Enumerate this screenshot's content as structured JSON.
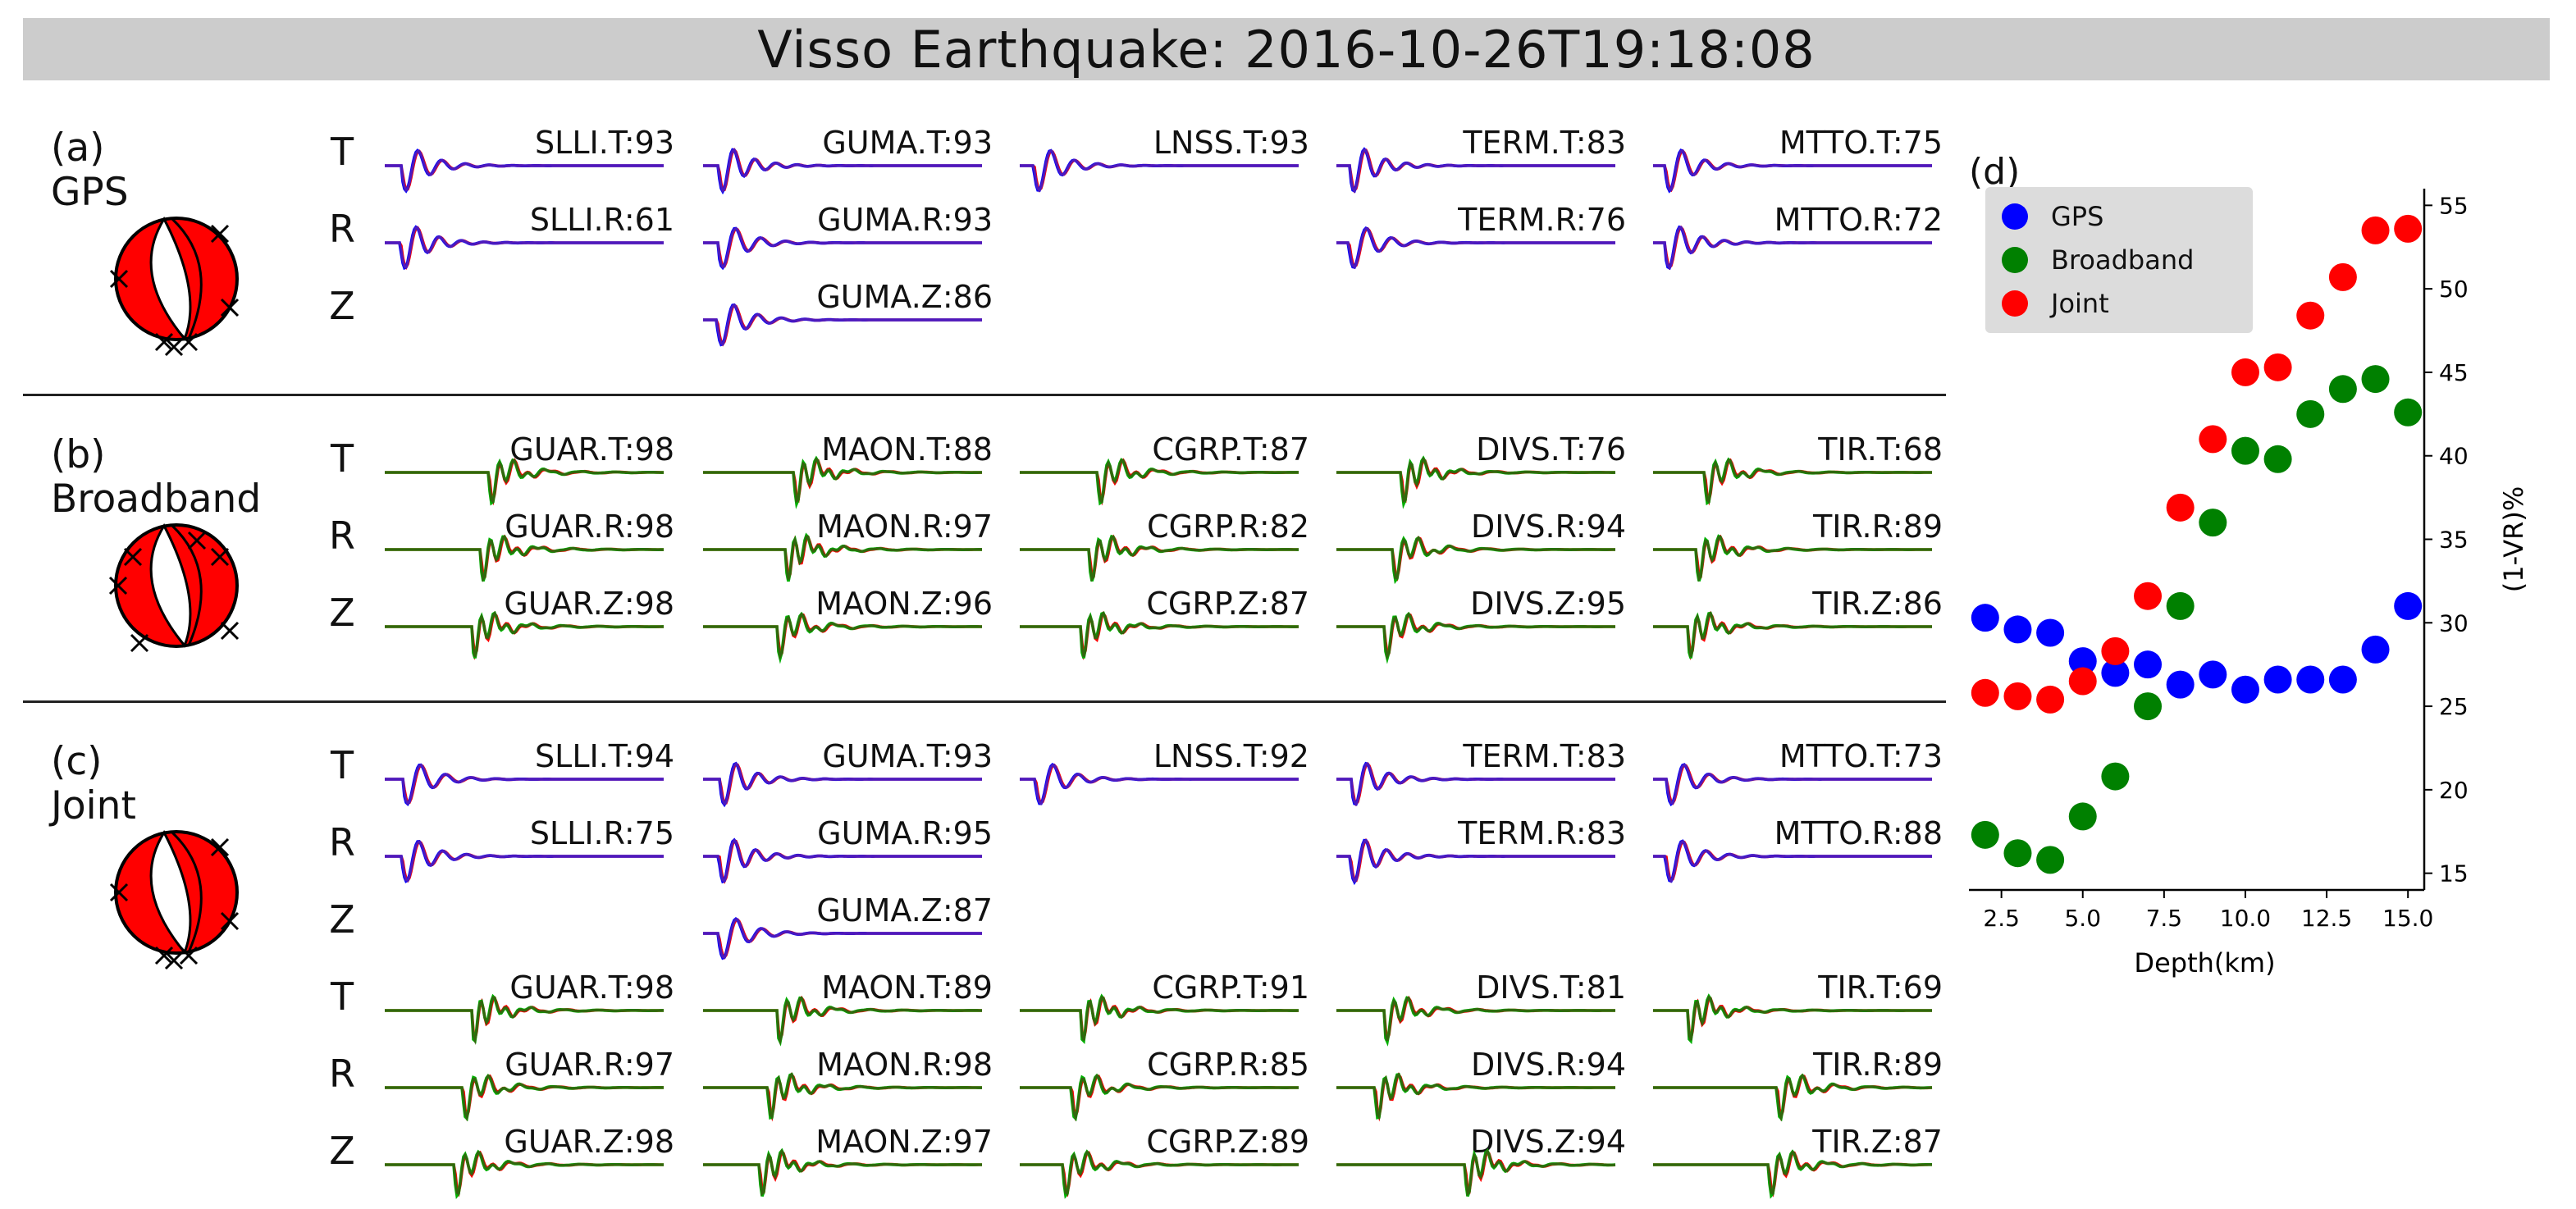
{
  "title": "Visso Earthquake: 2016-10-26T19:18:08",
  "colors": {
    "gps_obs": "#ff0000",
    "gps_syn": "#0000ff",
    "gps_overlap": "#5a1fb0",
    "bb_obs": "#ff0000",
    "bb_syn": "#00b000",
    "bb_overlap": "#3a5a10",
    "beachball_fill": "#ff0000"
  },
  "panels": [
    {
      "tag": "(a)",
      "name": "GPS",
      "type": "gps",
      "rows": [
        {
          "comp": "T",
          "stations": [
            "SLLI.T:93",
            "GUMA.T:93",
            "LNSS.T:93",
            "TERM.T:83",
            "MTTO.T:75"
          ]
        },
        {
          "comp": "R",
          "stations": [
            "SLLI.R:61",
            "GUMA.R:93",
            "",
            "TERM.R:76",
            "MTTO.R:72"
          ]
        },
        {
          "comp": "Z",
          "stations": [
            "",
            "GUMA.Z:86",
            "",
            "",
            ""
          ]
        }
      ]
    },
    {
      "tag": "(b)",
      "name": "Broadband",
      "type": "bb",
      "rows": [
        {
          "comp": "T",
          "stations": [
            "GUAR.T:98",
            "MAON.T:88",
            "CGRP.T:87",
            "DIVS.T:76",
            "TIR.T:68"
          ]
        },
        {
          "comp": "R",
          "stations": [
            "GUAR.R:98",
            "MAON.R:97",
            "CGRP.R:82",
            "DIVS.R:94",
            "TIR.R:89"
          ]
        },
        {
          "comp": "Z",
          "stations": [
            "GUAR.Z:98",
            "MAON.Z:96",
            "CGRP.Z:87",
            "DIVS.Z:95",
            "TIR.Z:86"
          ]
        }
      ]
    },
    {
      "tag": "(c)",
      "name": "Joint",
      "type": "joint",
      "rows": [
        {
          "comp": "T",
          "kind": "gps",
          "stations": [
            "SLLI.T:94",
            "GUMA.T:93",
            "LNSS.T:92",
            "TERM.T:83",
            "MTTO.T:73"
          ]
        },
        {
          "comp": "R",
          "kind": "gps",
          "stations": [
            "SLLI.R:75",
            "GUMA.R:95",
            "",
            "TERM.R:83",
            "MTTO.R:88"
          ]
        },
        {
          "comp": "Z",
          "kind": "gps",
          "stations": [
            "",
            "GUMA.Z:87",
            "",
            "",
            ""
          ]
        },
        {
          "comp": "T",
          "kind": "bb",
          "stations": [
            "GUAR.T:98",
            "MAON.T:89",
            "CGRP.T:91",
            "DIVS.T:81",
            "TIR.T:69"
          ]
        },
        {
          "comp": "R",
          "kind": "bb",
          "stations": [
            "GUAR.R:97",
            "MAON.R:98",
            "CGRP.R:85",
            "DIVS.R:94",
            "TIR.R:89"
          ]
        },
        {
          "comp": "Z",
          "kind": "bb",
          "stations": [
            "GUAR.Z:98",
            "MAON.Z:97",
            "CGRP.Z:89",
            "DIVS.Z:94",
            "TIR.Z:87"
          ]
        }
      ]
    }
  ],
  "chart_data": {
    "type": "scatter",
    "panel_tag": "(d)",
    "xlabel": "Depth(km)",
    "ylabel": "(1-VR)%",
    "xlim": [
      1.5,
      15.5
    ],
    "ylim": [
      14,
      56
    ],
    "xticks": [
      2.5,
      5.0,
      7.5,
      10.0,
      12.5,
      15.0
    ],
    "xtick_labels": [
      "2.5",
      "5.0",
      "7.5",
      "10.0",
      "12.5",
      "15.0"
    ],
    "yticks": [
      15,
      20,
      25,
      30,
      35,
      40,
      45,
      50,
      55
    ],
    "ytick_labels": [
      "15",
      "20",
      "25",
      "30",
      "35",
      "40",
      "45",
      "50",
      "55"
    ],
    "legend_position": "top-left",
    "series": [
      {
        "name": "GPS",
        "color": "#0000ff",
        "x": [
          2,
          3,
          4,
          5,
          6,
          7,
          8,
          9,
          10,
          11,
          12,
          13,
          14,
          15
        ],
        "y": [
          30.3,
          29.6,
          29.4,
          27.7,
          27.0,
          27.5,
          26.3,
          26.9,
          26.0,
          26.6,
          26.6,
          26.6,
          28.4,
          31.0
        ]
      },
      {
        "name": "Broadband",
        "color": "#008000",
        "x": [
          2,
          3,
          4,
          5,
          6,
          7,
          8,
          9,
          10,
          11,
          12,
          13,
          14,
          15
        ],
        "y": [
          17.3,
          16.2,
          15.8,
          18.4,
          20.8,
          25.0,
          31.0,
          36.0,
          40.3,
          39.8,
          42.5,
          44.0,
          44.6,
          42.6
        ]
      },
      {
        "name": "Joint",
        "color": "#ff0000",
        "x": [
          2,
          3,
          4,
          5,
          6,
          7,
          8,
          9,
          10,
          11,
          12,
          13,
          14,
          15
        ],
        "y": [
          25.8,
          25.6,
          25.4,
          26.5,
          28.3,
          31.6,
          36.9,
          41.0,
          45.0,
          45.3,
          48.4,
          50.7,
          53.5,
          53.6
        ]
      }
    ]
  }
}
